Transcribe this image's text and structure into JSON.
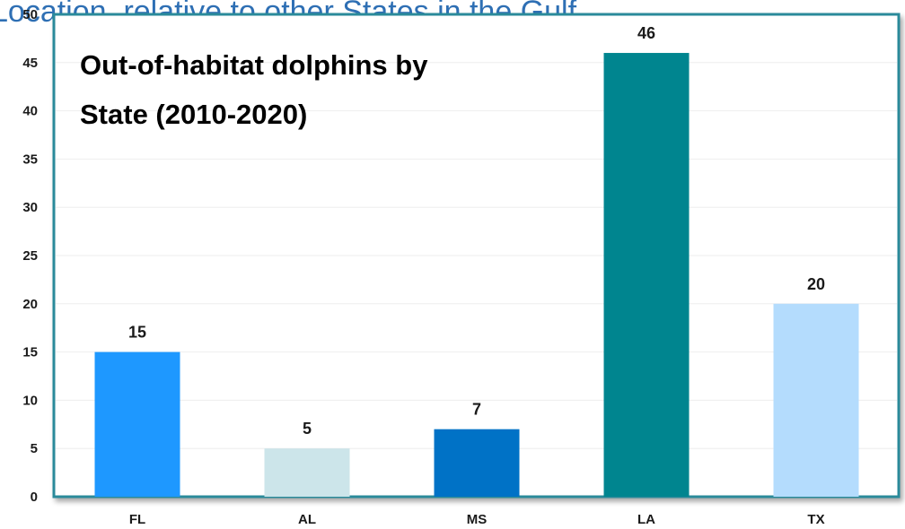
{
  "background_heading": "Location, relative to other States in the Gulf",
  "chart_data": {
    "type": "bar",
    "title_lines": [
      "Out-of-habitat dolphins by",
      "State (2010-2020)"
    ],
    "xlabel": "",
    "ylabel": "",
    "categories": [
      "FL",
      "AL",
      "MS",
      "LA",
      "TX"
    ],
    "values": [
      15,
      5,
      7,
      46,
      20
    ],
    "data_labels": [
      "15",
      "5",
      "7",
      "46",
      "20"
    ],
    "bar_colors": [
      "#1e98ff",
      "#cce5ea",
      "#0072c6",
      "#00858f",
      "#b4dcfd"
    ],
    "ylim": [
      0,
      50
    ],
    "yticks": [
      0,
      5,
      10,
      15,
      20,
      25,
      30,
      35,
      40,
      45,
      50
    ],
    "ytick_labels": [
      "0",
      "5",
      "10",
      "15",
      "20",
      "25",
      "30",
      "35",
      "40",
      "45",
      "50"
    ],
    "grid": true,
    "frame_color": "#2a8a9a"
  }
}
